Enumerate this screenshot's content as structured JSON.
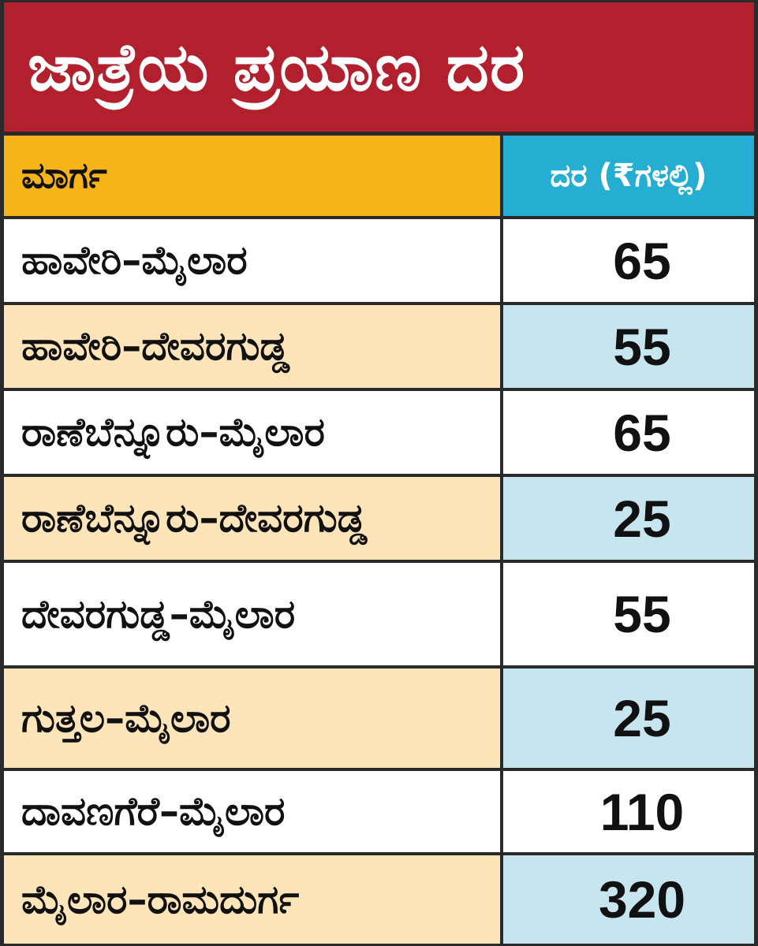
{
  "title": "ಜಾತ್ರೆಯ ಪ್ರಯಾಣ ದರ",
  "table": {
    "headers": {
      "route": "ಮಾರ್ಗ",
      "rate": "ದರ (₹ಗಳಲ್ಲಿ)"
    },
    "rows": [
      {
        "route": "ಹಾವೇರಿ–ಮೈಲಾರ",
        "rate": "65"
      },
      {
        "route": "ಹಾವೇರಿ–ದೇವರಗುಡ್ಡ",
        "rate": "55"
      },
      {
        "route": "ರಾಣೆಬೆನ್ನೂರು–ಮೈಲಾರ",
        "rate": "65"
      },
      {
        "route": "ರಾಣೆಬೆನ್ನೂರು–ದೇವರಗುಡ್ಡ",
        "rate": "25"
      },
      {
        "route": "ದೇವರಗುಡ್ಡ–ಮೈಲಾರ",
        "rate": "55"
      },
      {
        "route": "ಗುತ್ತಲ–ಮೈಲಾರ",
        "rate": "25"
      },
      {
        "route": "ದಾವಣಗೆರೆ–ಮೈಲಾರ",
        "rate": "110"
      },
      {
        "route": "ಮೈಲಾರ–ರಾಮದುರ್ಗ",
        "rate": "320"
      }
    ]
  },
  "colors": {
    "title_bg": "#b3202d",
    "route_header_bg": "#f7b419",
    "rate_header_bg": "#25aed1",
    "shaded_route_bg": "#fde4b9",
    "shaded_rate_bg": "#c6e5ef",
    "border": "#2a2a2a"
  }
}
